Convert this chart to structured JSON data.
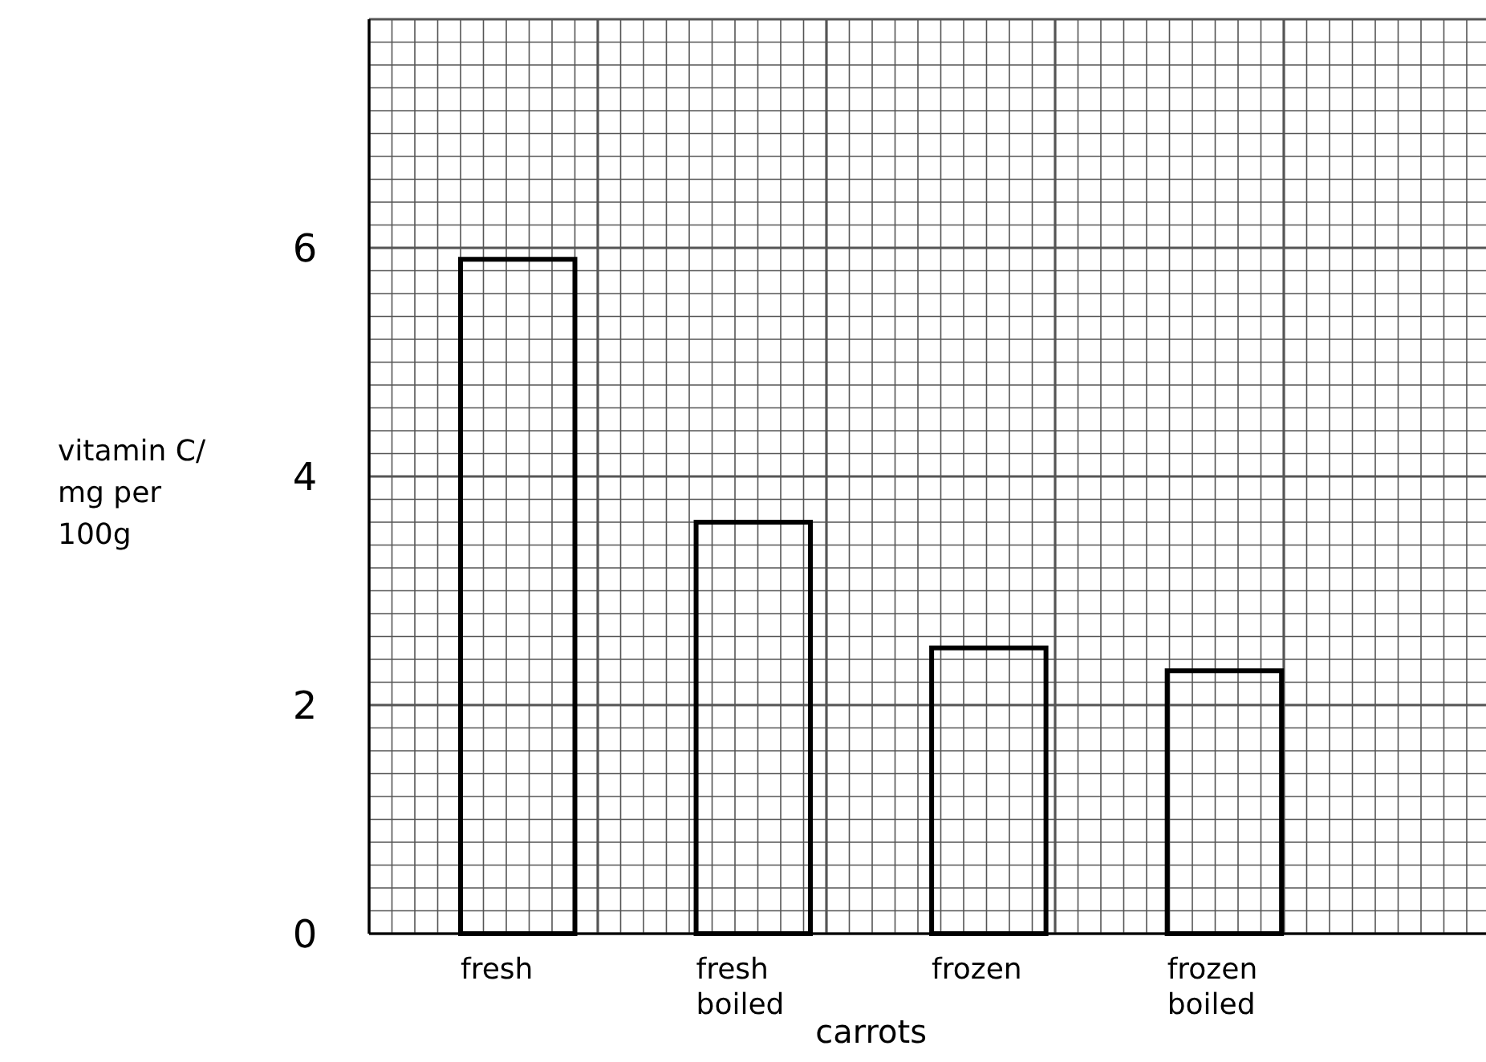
{
  "chart_data": {
    "type": "bar",
    "xlabel": "carrots",
    "ylabel": "vitamin C/ mg per 100g",
    "categories": [
      "fresh",
      "fresh boiled",
      "frozen",
      "frozen boiled"
    ],
    "values": [
      5.9,
      3.6,
      2.5,
      2.3
    ],
    "color": "#000000",
    "ylim": [
      0,
      8
    ],
    "yticks": [
      0,
      2,
      4,
      6
    ],
    "grid": true
  }
}
